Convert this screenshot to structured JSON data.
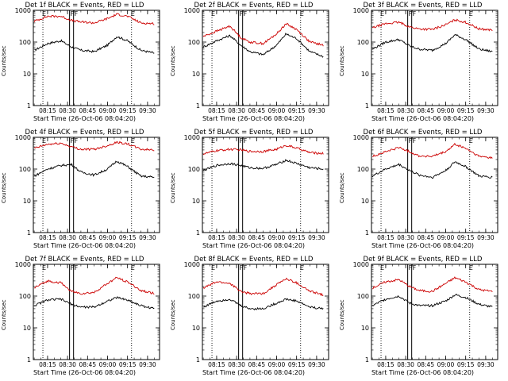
{
  "chart_data": [
    {
      "type": "line",
      "title": "Det 1f BLACK = Events, RED = LLD",
      "xlabel": "Start Time (26-Oct-06 08:04:20)",
      "ylabel": "Counts/sec",
      "x_ticks": [
        "08:15",
        "08:30",
        "08:45",
        "09:00",
        "09:15",
        "09:30"
      ],
      "y_ticks": [
        "1",
        "10",
        "100",
        "1000"
      ],
      "ylim": [
        1,
        1000
      ],
      "y_scale": "log",
      "markers": [
        "E",
        "F",
        "F",
        "E"
      ],
      "x": [
        "08:05",
        "08:15",
        "08:25",
        "08:33",
        "08:40",
        "08:50",
        "09:00",
        "09:07",
        "09:15",
        "09:25",
        "09:35"
      ],
      "series": [
        {
          "name": "BLACK = Events",
          "color": "#000000",
          "values": [
            55,
            90,
            110,
            70,
            55,
            50,
            80,
            150,
            110,
            55,
            45
          ]
        },
        {
          "name": "RED = LLD",
          "color": "#cc0000",
          "values": [
            450,
            650,
            650,
            480,
            430,
            400,
            550,
            750,
            650,
            400,
            380
          ]
        }
      ]
    },
    {
      "type": "line",
      "title": "Det 2f BLACK = Events, RED = LLD",
      "xlabel": "Start Time (26-Oct-06 08:04:20)",
      "ylabel": "Counts/sec",
      "x_ticks": [
        "08:15",
        "08:30",
        "08:45",
        "09:00",
        "09:15",
        "09:30"
      ],
      "y_ticks": [
        "1",
        "10",
        "100",
        "1000"
      ],
      "ylim": [
        1,
        1000
      ],
      "y_scale": "log",
      "markers": [
        "E",
        "F",
        "F",
        "E"
      ],
      "x": [
        "08:05",
        "08:15",
        "08:25",
        "08:33",
        "08:40",
        "08:50",
        "09:00",
        "09:07",
        "09:15",
        "09:25",
        "09:35"
      ],
      "series": [
        {
          "name": "BLACK = Events",
          "color": "#000000",
          "values": [
            70,
            110,
            160,
            80,
            50,
            40,
            80,
            180,
            130,
            50,
            35
          ]
        },
        {
          "name": "RED = LLD",
          "color": "#cc0000",
          "values": [
            150,
            220,
            320,
            140,
            100,
            90,
            180,
            380,
            250,
            100,
            80
          ]
        }
      ]
    },
    {
      "type": "line",
      "title": "Det 3f BLACK = Events, RED = LLD",
      "xlabel": "Start Time (26-Oct-06 08:04:20)",
      "ylabel": "Counts/sec",
      "x_ticks": [
        "08:15",
        "08:30",
        "08:45",
        "09:00",
        "09:15",
        "09:30"
      ],
      "y_ticks": [
        "1",
        "10",
        "100",
        "1000"
      ],
      "ylim": [
        1,
        1000
      ],
      "y_scale": "log",
      "markers": [
        "E",
        "F",
        "F",
        "E"
      ],
      "x": [
        "08:05",
        "08:15",
        "08:25",
        "08:33",
        "08:40",
        "08:50",
        "09:00",
        "09:07",
        "09:15",
        "09:25",
        "09:35"
      ],
      "series": [
        {
          "name": "BLACK = Events",
          "color": "#000000",
          "values": [
            60,
            100,
            120,
            75,
            60,
            55,
            90,
            170,
            120,
            60,
            50
          ]
        },
        {
          "name": "RED = LLD",
          "color": "#cc0000",
          "values": [
            280,
            380,
            420,
            300,
            260,
            250,
            350,
            500,
            420,
            260,
            240
          ]
        }
      ]
    },
    {
      "type": "line",
      "title": "Det 4f BLACK = Events, RED = LLD",
      "xlabel": "Start Time (26-Oct-06 08:04:20)",
      "ylabel": "Counts/sec",
      "x_ticks": [
        "08:15",
        "08:30",
        "08:45",
        "09:00",
        "09:15",
        "09:30"
      ],
      "y_ticks": [
        "1",
        "10",
        "100",
        "1000"
      ],
      "ylim": [
        1,
        1000
      ],
      "y_scale": "log",
      "markers": [
        "E",
        "F",
        "F",
        "E"
      ],
      "x": [
        "08:05",
        "08:15",
        "08:25",
        "08:33",
        "08:40",
        "08:50",
        "09:00",
        "09:07",
        "09:15",
        "09:25",
        "09:35"
      ],
      "series": [
        {
          "name": "BLACK = Events",
          "color": "#000000",
          "values": [
            60,
            100,
            130,
            140,
            80,
            65,
            100,
            180,
            120,
            60,
            55
          ]
        },
        {
          "name": "RED = LLD",
          "color": "#cc0000",
          "values": [
            450,
            600,
            650,
            500,
            420,
            420,
            550,
            700,
            620,
            420,
            400
          ]
        }
      ]
    },
    {
      "type": "line",
      "title": "Det 5f BLACK = Events, RED = LLD",
      "xlabel": "Start Time (26-Oct-06 08:04:20)",
      "ylabel": "Counts/sec",
      "x_ticks": [
        "08:15",
        "08:30",
        "08:45",
        "09:00",
        "09:15",
        "09:30"
      ],
      "y_ticks": [
        "1",
        "10",
        "100",
        "1000"
      ],
      "ylim": [
        1,
        1000
      ],
      "y_scale": "log",
      "markers": [
        "E",
        "F",
        "F",
        "E"
      ],
      "x": [
        "08:05",
        "08:15",
        "08:25",
        "08:33",
        "08:40",
        "08:50",
        "09:00",
        "09:07",
        "09:15",
        "09:25",
        "09:35"
      ],
      "series": [
        {
          "name": "BLACK = Events",
          "color": "#000000",
          "values": [
            90,
            130,
            150,
            130,
            110,
            105,
            140,
            190,
            150,
            110,
            100
          ]
        },
        {
          "name": "RED = LLD",
          "color": "#cc0000",
          "values": [
            300,
            380,
            420,
            400,
            360,
            360,
            420,
            560,
            460,
            330,
            310
          ]
        }
      ]
    },
    {
      "type": "line",
      "title": "Det 6f BLACK = Events, RED = LLD",
      "xlabel": "Start Time (26-Oct-06 08:04:20)",
      "ylabel": "Counts/sec",
      "x_ticks": [
        "08:15",
        "08:30",
        "08:45",
        "09:00",
        "09:15",
        "09:30"
      ],
      "y_ticks": [
        "1",
        "10",
        "100",
        "1000"
      ],
      "ylim": [
        1,
        1000
      ],
      "y_scale": "log",
      "markers": [
        "E",
        "F",
        "F",
        "E"
      ],
      "x": [
        "08:05",
        "08:15",
        "08:25",
        "08:33",
        "08:40",
        "08:50",
        "09:00",
        "09:07",
        "09:15",
        "09:25",
        "09:35"
      ],
      "series": [
        {
          "name": "BLACK = Events",
          "color": "#000000",
          "values": [
            60,
            100,
            140,
            90,
            65,
            55,
            90,
            170,
            120,
            60,
            55
          ]
        },
        {
          "name": "RED = LLD",
          "color": "#cc0000",
          "values": [
            250,
            350,
            480,
            350,
            260,
            250,
            350,
            600,
            450,
            250,
            230
          ]
        }
      ]
    },
    {
      "type": "line",
      "title": "Det 7f BLACK = Events, RED = LLD",
      "xlabel": "Start Time (26-Oct-06 08:04:20)",
      "ylabel": "Counts/sec",
      "x_ticks": [
        "08:15",
        "08:30",
        "08:45",
        "09:00",
        "09:15",
        "09:30"
      ],
      "y_ticks": [
        "1",
        "10",
        "100",
        "1000"
      ],
      "ylim": [
        1,
        1000
      ],
      "y_scale": "log",
      "markers": [
        "E",
        "F",
        "F",
        "E"
      ],
      "x": [
        "08:05",
        "08:15",
        "08:25",
        "08:33",
        "08:40",
        "08:50",
        "09:00",
        "09:07",
        "09:15",
        "09:25",
        "09:35"
      ],
      "series": [
        {
          "name": "BLACK = Events",
          "color": "#000000",
          "values": [
            50,
            75,
            80,
            55,
            45,
            45,
            70,
            90,
            75,
            50,
            40
          ]
        },
        {
          "name": "RED = LLD",
          "color": "#cc0000",
          "values": [
            180,
            300,
            260,
            140,
            120,
            130,
            250,
            380,
            280,
            150,
            120
          ]
        }
      ]
    },
    {
      "type": "line",
      "title": "Det 8f BLACK = Events, RED = LLD",
      "xlabel": "Start Time (26-Oct-06 08:04:20)",
      "ylabel": "Counts/sec",
      "x_ticks": [
        "08:15",
        "08:30",
        "08:45",
        "09:00",
        "09:15",
        "09:30"
      ],
      "y_ticks": [
        "1",
        "10",
        "100",
        "1000"
      ],
      "ylim": [
        1,
        1000
      ],
      "y_scale": "log",
      "markers": [
        "E",
        "F",
        "F",
        "E"
      ],
      "x": [
        "08:05",
        "08:15",
        "08:25",
        "08:33",
        "08:40",
        "08:50",
        "09:00",
        "09:07",
        "09:15",
        "09:25",
        "09:35"
      ],
      "series": [
        {
          "name": "BLACK = Events",
          "color": "#000000",
          "values": [
            45,
            70,
            80,
            50,
            40,
            40,
            60,
            80,
            70,
            45,
            40
          ]
        },
        {
          "name": "RED = LLD",
          "color": "#cc0000",
          "values": [
            180,
            280,
            250,
            140,
            120,
            120,
            230,
            350,
            260,
            140,
            110
          ]
        }
      ]
    },
    {
      "type": "line",
      "title": "Det 9f BLACK = Events, RED = LLD",
      "xlabel": "Start Time (26-Oct-06 08:04:20)",
      "ylabel": "Counts/sec",
      "x_ticks": [
        "08:15",
        "08:30",
        "08:45",
        "09:00",
        "09:15",
        "09:30"
      ],
      "y_ticks": [
        "1",
        "10",
        "100",
        "1000"
      ],
      "ylim": [
        1,
        1000
      ],
      "y_scale": "log",
      "markers": [
        "E",
        "F",
        "F",
        "E"
      ],
      "x": [
        "08:05",
        "08:15",
        "08:25",
        "08:33",
        "08:40",
        "08:50",
        "09:00",
        "09:07",
        "09:15",
        "09:25",
        "09:35"
      ],
      "series": [
        {
          "name": "BLACK = Events",
          "color": "#000000",
          "values": [
            50,
            80,
            100,
            60,
            50,
            50,
            70,
            110,
            90,
            55,
            45
          ]
        },
        {
          "name": "RED = LLD",
          "color": "#cc0000",
          "values": [
            180,
            280,
            330,
            200,
            150,
            140,
            250,
            380,
            280,
            160,
            140
          ]
        }
      ]
    }
  ]
}
